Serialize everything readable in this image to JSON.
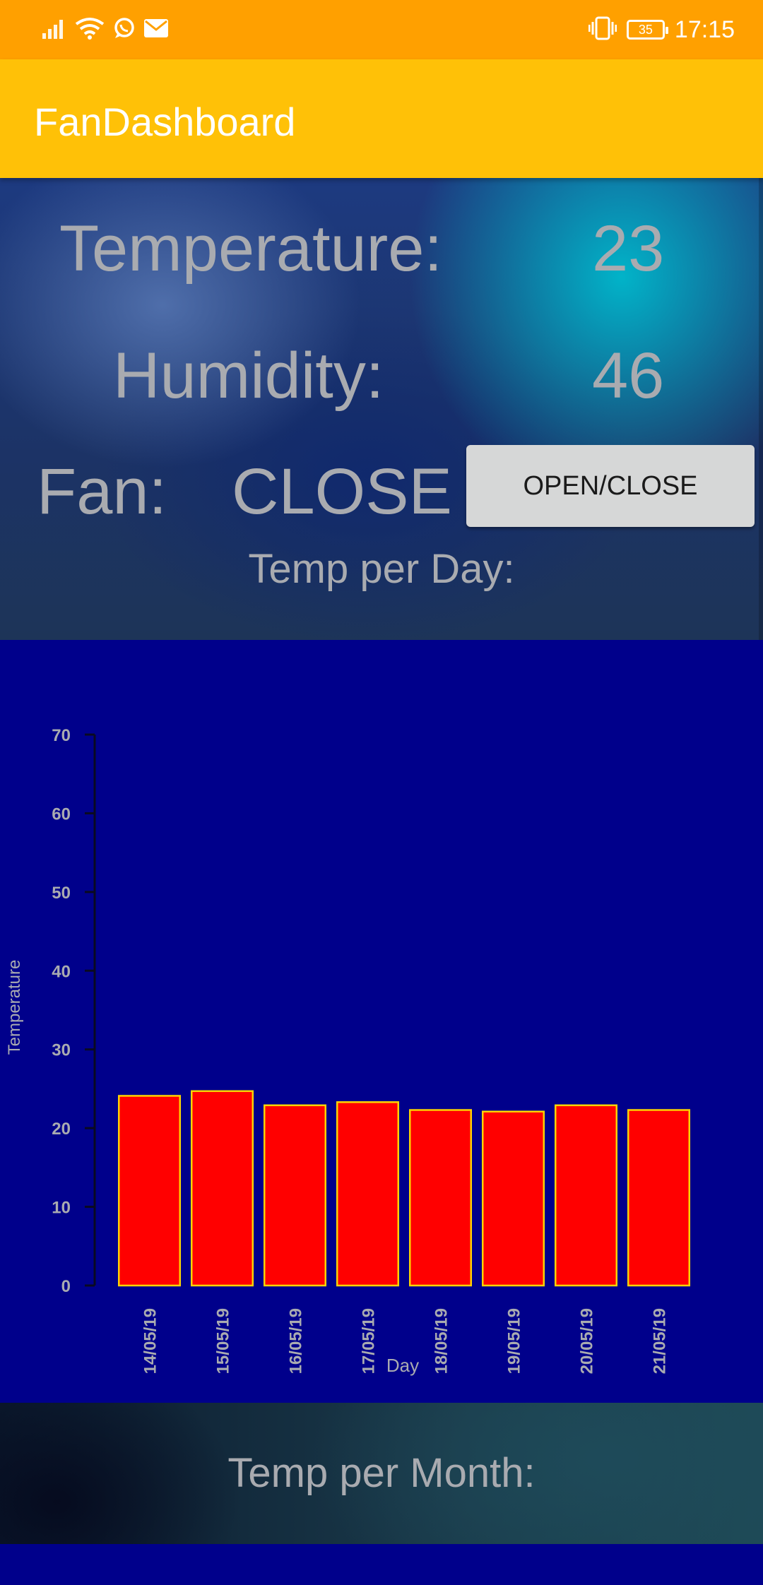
{
  "status_bar": {
    "time": "17:15",
    "battery": "35",
    "icons": [
      "signal-icon",
      "wifi-icon",
      "whatsapp-icon",
      "mail-icon",
      "vibrate-icon",
      "battery-icon"
    ]
  },
  "app_bar": {
    "title": "FanDashboard",
    "color": "#ffc107"
  },
  "readings": {
    "temperature_label": "Temperature:",
    "temperature_value": "23",
    "humidity_label": "Humidity:",
    "humidity_value": "46",
    "fan_label": "Fan:",
    "fan_status": "CLOSE"
  },
  "toggle_button": {
    "label": "OPEN/CLOSE"
  },
  "sections": {
    "day_title": "Temp per Day:",
    "month_title": "Temp per Month:"
  },
  "chart_data": {
    "type": "bar",
    "categories": [
      "14/05/19",
      "15/05/19",
      "16/05/19",
      "17/05/19",
      "18/05/19",
      "19/05/19",
      "20/05/19",
      "21/05/19"
    ],
    "values": [
      24.1,
      24.7,
      22.9,
      23.3,
      22.3,
      22.1,
      22.9,
      22.3
    ],
    "xlabel": "Day",
    "ylabel": "Temperature",
    "ylim": [
      0,
      70
    ],
    "yticks": [
      0,
      10,
      20,
      30,
      40,
      50,
      60,
      70
    ],
    "bar_color": "#ff0000",
    "bar_border_color": "#ffd400",
    "background_color": "#00008b",
    "grid": false
  }
}
